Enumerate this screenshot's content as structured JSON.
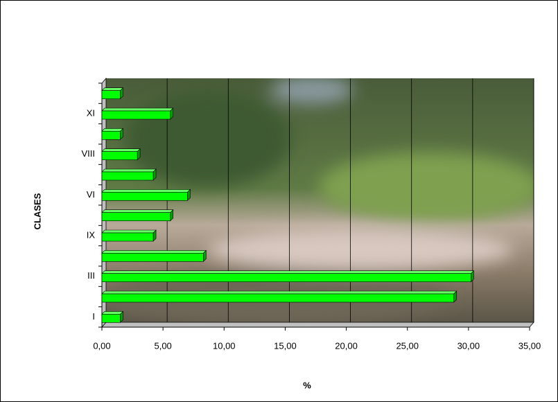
{
  "chart_data": {
    "type": "bar",
    "orientation": "horizontal",
    "x_title": "%",
    "y_title": "CLASES",
    "categories": [
      "I",
      null,
      "III",
      null,
      "IX",
      null,
      "VI",
      null,
      "VIII",
      null,
      "XI",
      null
    ],
    "values": [
      1.5,
      28.8,
      30.2,
      8.3,
      4.2,
      5.6,
      7.0,
      4.2,
      2.9,
      1.5,
      5.6,
      1.5
    ],
    "color": "#00ff00",
    "xlim": [
      0,
      35
    ],
    "xticks": [
      {
        "value": 0,
        "label": "0,00"
      },
      {
        "value": 5,
        "label": "5,00"
      },
      {
        "value": 10,
        "label": "10,00"
      },
      {
        "value": 15,
        "label": "15,00"
      },
      {
        "value": 20,
        "label": "20,00"
      },
      {
        "value": 25,
        "label": "25,00"
      },
      {
        "value": 30,
        "label": "30,00"
      },
      {
        "value": 35,
        "label": "35,00"
      }
    ],
    "grid": true
  }
}
